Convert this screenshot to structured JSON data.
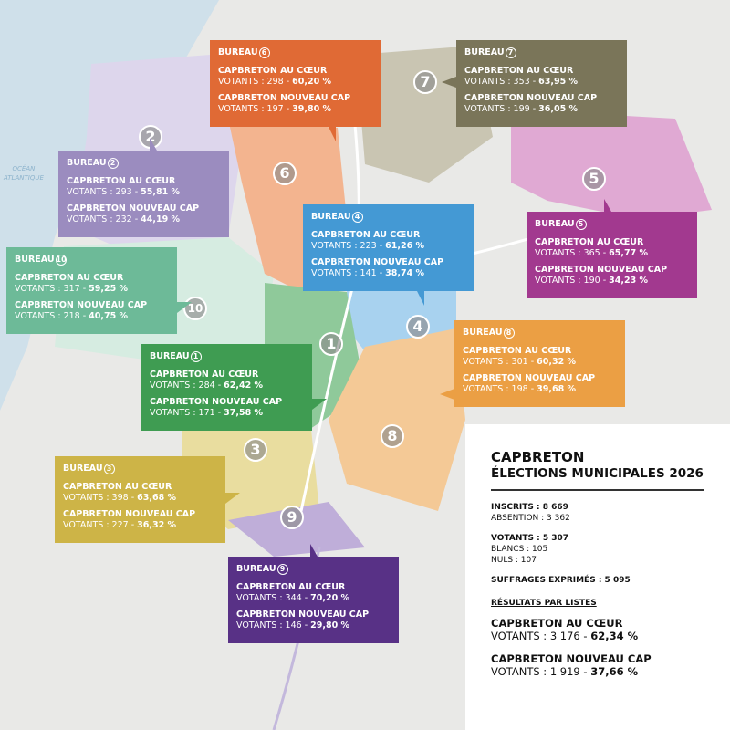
{
  "map": {
    "ocean_label": [
      "OCÉAN",
      "ATLANTIQUE"
    ],
    "colors": {
      "water": "#cfe0ea",
      "land": "#e9e9e7"
    }
  },
  "list_names": [
    "CAPBRETON AU CŒUR",
    "CAPBRETON NOUVEAU CAP"
  ],
  "bureaux": [
    {
      "id": "6",
      "label": "BUREAU",
      "color": "#e06a35",
      "results": [
        {
          "list": "CAPBRETON AU CŒUR",
          "votants_label": "VOTANTS : 298 - ",
          "pct": "60,20 %"
        },
        {
          "list": "CAPBRETON NOUVEAU CAP",
          "votants_label": "VOTANTS : 197 - ",
          "pct": "39,80 %"
        }
      ]
    },
    {
      "id": "7",
      "label": "BUREAU",
      "color": "#7a7559",
      "results": [
        {
          "list": "CAPBRETON AU CŒUR",
          "votants_label": "VOTANTS : 353 - ",
          "pct": "63,95 %"
        },
        {
          "list": "CAPBRETON NOUVEAU CAP",
          "votants_label": "VOTANTS : 199 - ",
          "pct": "36,05 %"
        }
      ]
    },
    {
      "id": "2",
      "label": "BUREAU",
      "color": "#9b8cbf",
      "results": [
        {
          "list": "CAPBRETON AU CŒUR",
          "votants_label": "VOTANTS : 293 - ",
          "pct": "55,81 %"
        },
        {
          "list": "CAPBRETON NOUVEAU CAP",
          "votants_label": "VOTANTS : 232 - ",
          "pct": "44,19 %"
        }
      ]
    },
    {
      "id": "4",
      "label": "BUREAU",
      "color": "#4499d4",
      "results": [
        {
          "list": "CAPBRETON AU CŒUR",
          "votants_label": "VOTANTS : 223 - ",
          "pct": "61,26 %"
        },
        {
          "list": "CAPBRETON NOUVEAU CAP",
          "votants_label": "VOTANTS : 141 - ",
          "pct": "38,74 %"
        }
      ]
    },
    {
      "id": "5",
      "label": "BUREAU",
      "color": "#a2398f",
      "results": [
        {
          "list": "CAPBRETON AU CŒUR",
          "votants_label": "VOTANTS : 365 - ",
          "pct": "65,77 %"
        },
        {
          "list": "CAPBRETON NOUVEAU CAP",
          "votants_label": "VOTANTS : 190 - ",
          "pct": "34,23 %"
        }
      ]
    },
    {
      "id": "10",
      "label": "BUREAU",
      "color": "#6dba98",
      "results": [
        {
          "list": "CAPBRETON AU CŒUR",
          "votants_label": "VOTANTS : 317 - ",
          "pct": "59,25 %"
        },
        {
          "list": "CAPBRETON NOUVEAU CAP",
          "votants_label": "VOTANTS : 218 - ",
          "pct": "40,75 %"
        }
      ]
    },
    {
      "id": "8",
      "label": "BUREAU",
      "color": "#eb9f44",
      "results": [
        {
          "list": "CAPBRETON AU CŒUR",
          "votants_label": "VOTANTS : 301 - ",
          "pct": "60,32 %"
        },
        {
          "list": "CAPBRETON NOUVEAU CAP",
          "votants_label": "VOTANTS : 198 - ",
          "pct": "39,68 %"
        }
      ]
    },
    {
      "id": "1",
      "label": "BUREAU",
      "color": "#3f9c52",
      "results": [
        {
          "list": "CAPBRETON AU CŒUR",
          "votants_label": "VOTANTS : 284 - ",
          "pct": "62,42 %"
        },
        {
          "list": "CAPBRETON NOUVEAU CAP",
          "votants_label": "VOTANTS : 171 - ",
          "pct": "37,58 %"
        }
      ]
    },
    {
      "id": "3",
      "label": "BUREAU",
      "color": "#cdb447",
      "results": [
        {
          "list": "CAPBRETON AU CŒUR",
          "votants_label": "VOTANTS : 398 - ",
          "pct": "63,68 %"
        },
        {
          "list": "CAPBRETON NOUVEAU CAP",
          "votants_label": "VOTANTS : 227 - ",
          "pct": "36,32 %"
        }
      ]
    },
    {
      "id": "9",
      "label": "BUREAU",
      "color": "#583186",
      "results": [
        {
          "list": "CAPBRETON AU CŒUR",
          "votants_label": "VOTANTS : 344 - ",
          "pct": "70,20 %"
        },
        {
          "list": "CAPBRETON NOUVEAU CAP",
          "votants_label": "VOTANTS : 146 - ",
          "pct": "29,80 %"
        }
      ]
    }
  ],
  "markers": [
    "7",
    "2",
    "6",
    "5",
    "10",
    "1",
    "4",
    "8",
    "3",
    "9"
  ],
  "panel": {
    "title": "CAPBRETON",
    "subtitle": "ÉLECTIONS MUNICIPALES 2026",
    "inscrits": "INSCRITS : 8 669",
    "absention": "ABSENTION : 3 362",
    "votants": "VOTANTS : 5 307",
    "blancs": "BLANCS : 105",
    "nuls": "NULS : 107",
    "exprimes": "SUFFRAGES EXPRIMÉS : 5 095",
    "results_title": "RÉSULTATS PAR LISTES",
    "results": [
      {
        "list": "CAPBRETON AU CŒUR",
        "votants_label": "VOTANTS : 3 176 - ",
        "pct": "62,34 %"
      },
      {
        "list": "CAPBRETON NOUVEAU CAP",
        "votants_label": "VOTANTS : 1 919 - ",
        "pct": "37,66 %"
      }
    ]
  }
}
